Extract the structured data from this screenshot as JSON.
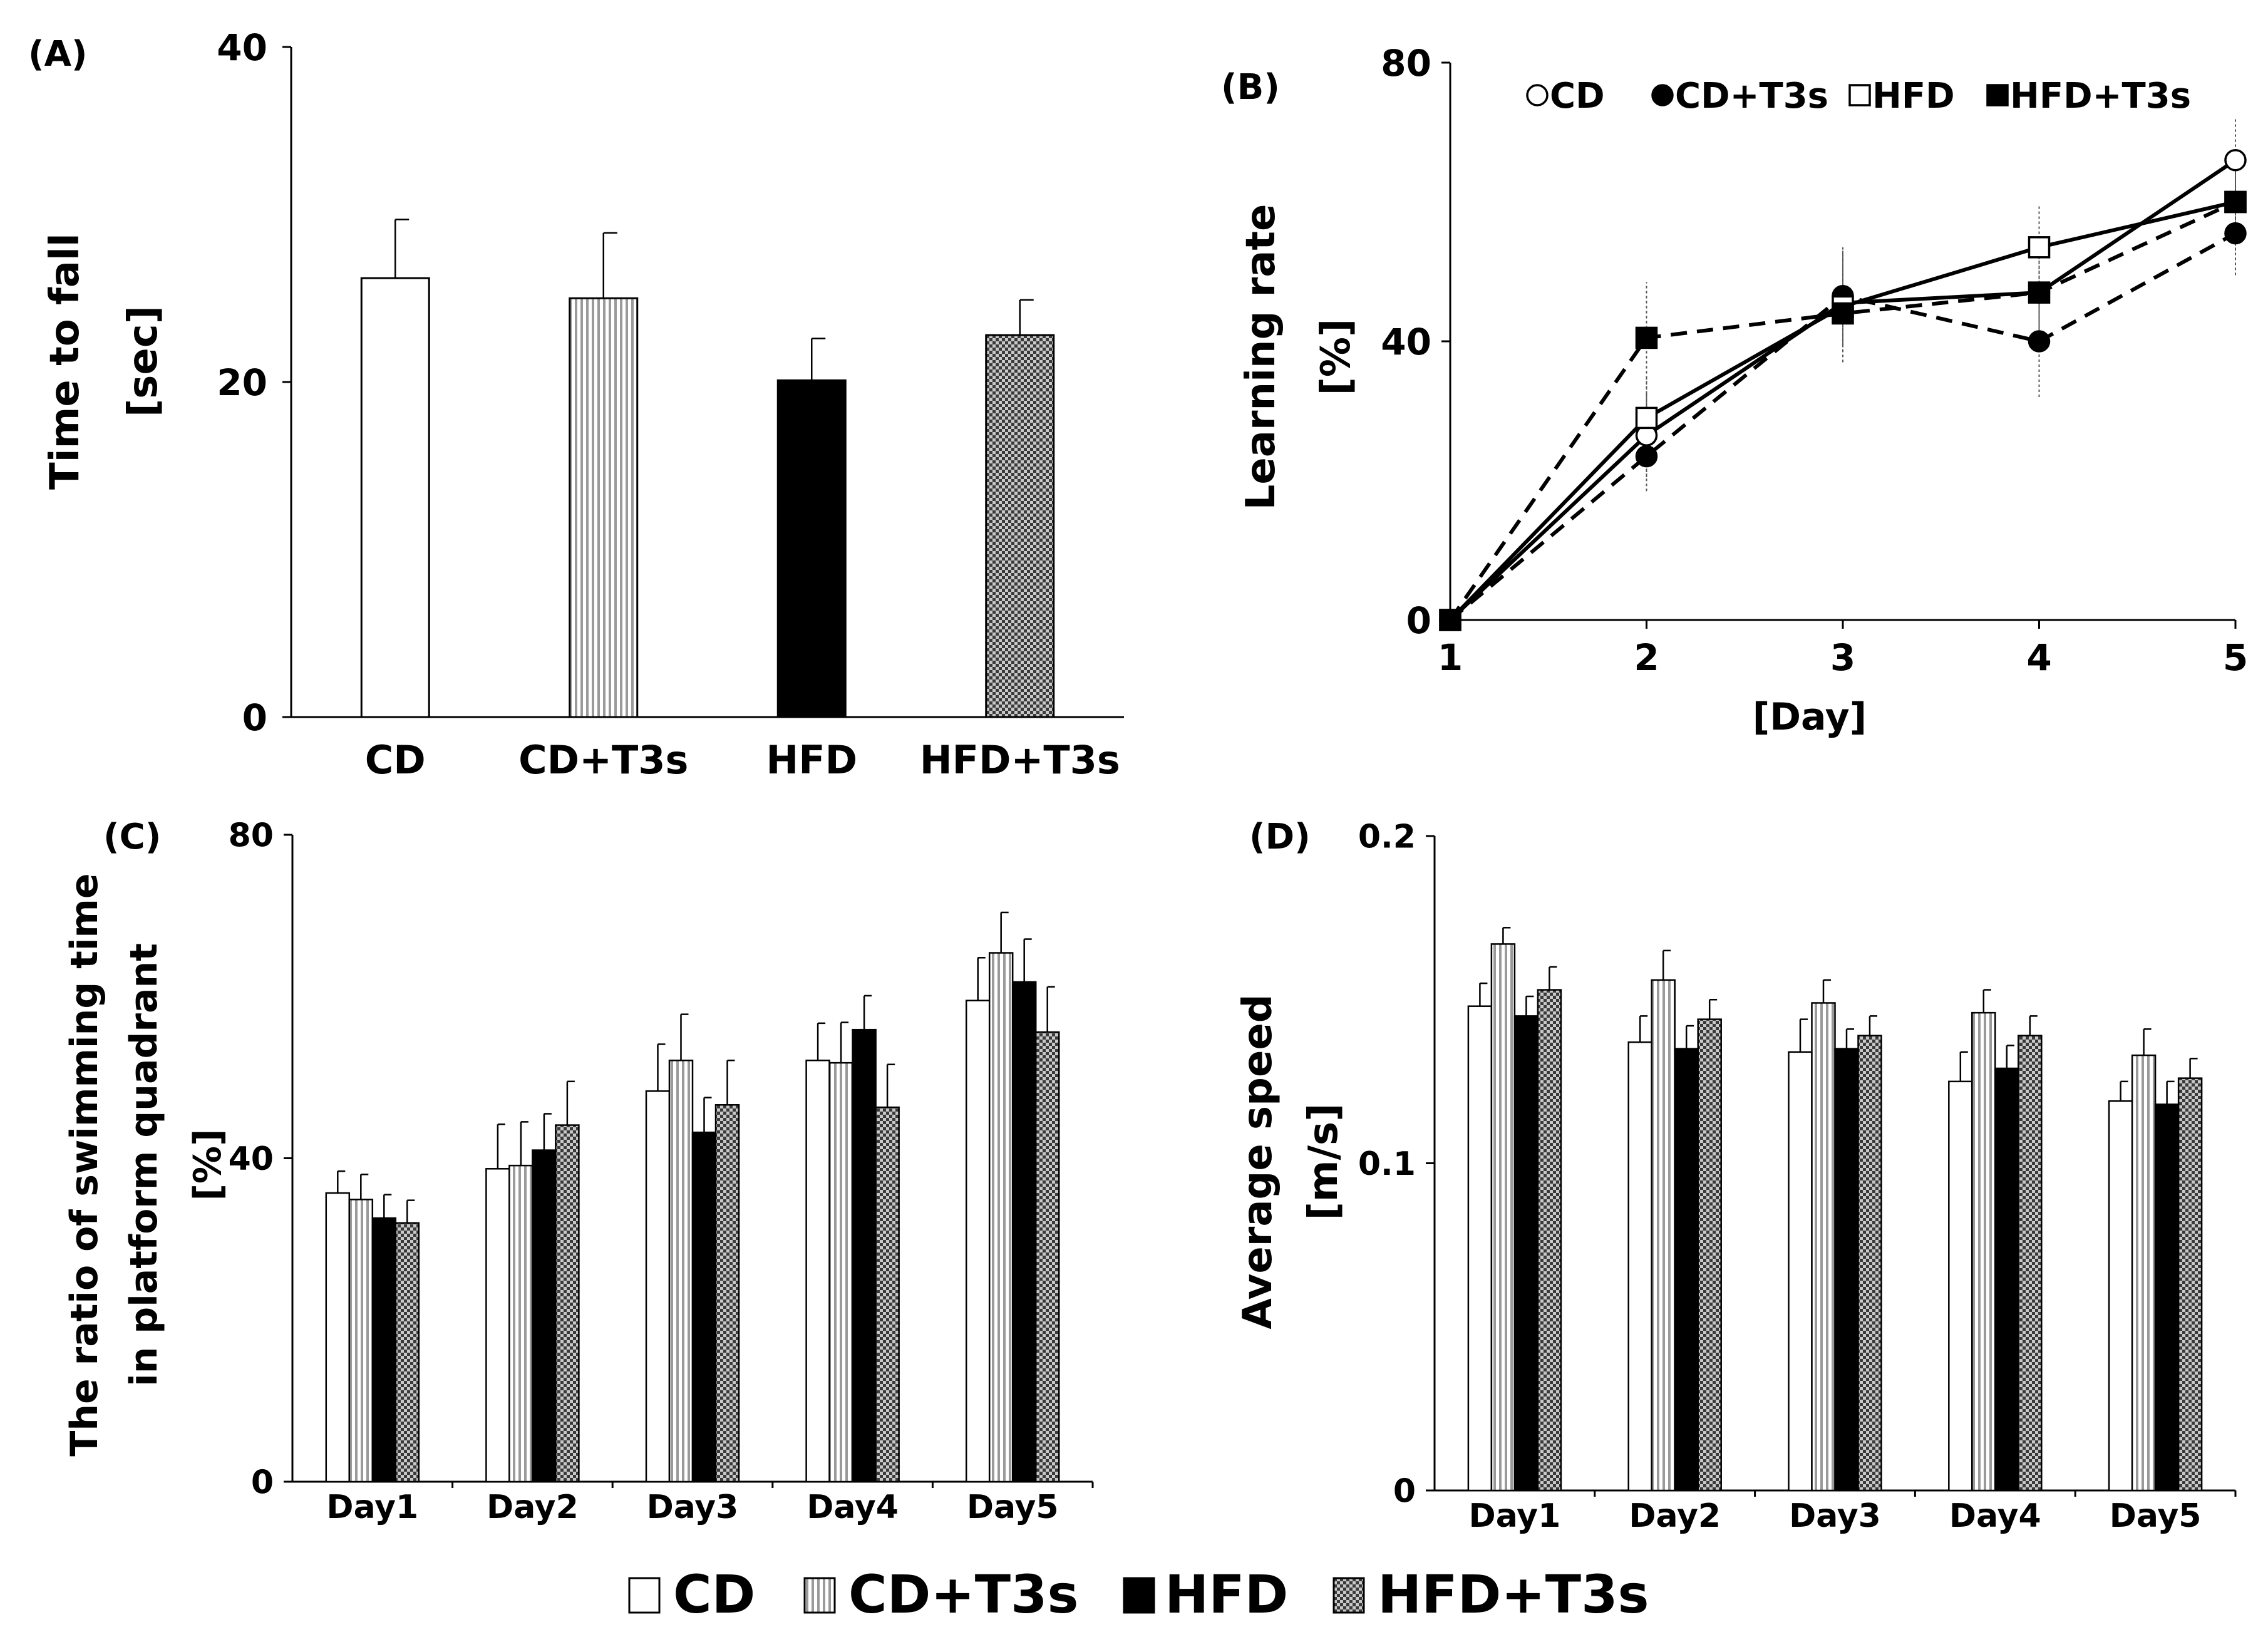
{
  "figure": {
    "legend_bottom": [
      "CD",
      "CD+T3s",
      "HFD",
      "HFD+T3s"
    ]
  },
  "colors": {
    "CD": "#ffffff",
    "CD+T3s": "vertical-stripe",
    "HFD": "#000000",
    "HFD+T3s": "checker"
  },
  "chart_data": [
    {
      "id": "A",
      "panel_label": "(A)",
      "type": "bar",
      "ylabel_lines": [
        "Time to fall",
        "[sec]"
      ],
      "xlabel": "",
      "ylim": [
        0,
        40
      ],
      "yticks": [
        0,
        20,
        40
      ],
      "categories": [
        "CD",
        "CD+T3s",
        "HFD",
        "HFD+T3s"
      ],
      "values": [
        26.2,
        25.0,
        20.1,
        22.8
      ],
      "errors": [
        3.5,
        3.9,
        2.5,
        2.1
      ]
    },
    {
      "id": "B",
      "panel_label": "(B)",
      "type": "line",
      "ylabel_lines": [
        "Learning rate",
        "[%]"
      ],
      "xlabel": "[Day]",
      "ylim": [
        0,
        80
      ],
      "yticks": [
        0,
        40,
        80
      ],
      "xlim": [
        1,
        5
      ],
      "x": [
        1,
        2,
        3,
        4,
        5
      ],
      "legend": [
        "CD",
        "CD+T3s",
        "HFD",
        "HFD+T3s"
      ],
      "series": [
        {
          "name": "CD",
          "marker": "open-circle",
          "dash": false,
          "values": [
            0,
            26.5,
            45.5,
            47,
            66
          ],
          "errors": [
            0,
            6,
            7,
            8,
            6
          ]
        },
        {
          "name": "CD+T3s",
          "marker": "filled-circle",
          "dash": true,
          "values": [
            0,
            23.5,
            46.5,
            40,
            55.5
          ],
          "errors": [
            0,
            5,
            7,
            8,
            6
          ]
        },
        {
          "name": "HFD",
          "marker": "open-square",
          "dash": false,
          "values": [
            0,
            29,
            45,
            53.5,
            60
          ],
          "errors": [
            0,
            6,
            8,
            6,
            7
          ]
        },
        {
          "name": "HFD+T3s",
          "marker": "filled-square",
          "dash": true,
          "values": [
            0,
            40.5,
            44,
            47,
            60
          ],
          "errors": [
            0,
            8,
            7,
            6,
            6
          ]
        }
      ]
    },
    {
      "id": "C",
      "panel_label": "(C)",
      "type": "bar",
      "ylabel_lines": [
        "The ratio of swimming time",
        "in platform quadrant",
        "[%]"
      ],
      "xlabel": "",
      "ylim": [
        0,
        80
      ],
      "yticks": [
        0,
        40,
        80
      ],
      "categories": [
        "Day1",
        "Day2",
        "Day3",
        "Day4",
        "Day5"
      ],
      "series": [
        {
          "name": "CD",
          "values": [
            35.7,
            38.7,
            48.3,
            52.1,
            59.5
          ],
          "errors": [
            2.7,
            5.5,
            5.8,
            4.6,
            5.3
          ]
        },
        {
          "name": "CD+T3s",
          "values": [
            34.9,
            39.1,
            52.1,
            51.8,
            65.4
          ],
          "errors": [
            3.1,
            5.4,
            5.7,
            5.0,
            5.0
          ]
        },
        {
          "name": "HFD",
          "values": [
            32.6,
            41.0,
            43.2,
            55.9,
            61.8
          ],
          "errors": [
            2.9,
            4.5,
            4.3,
            4.2,
            5.3
          ]
        },
        {
          "name": "HFD+T3s",
          "values": [
            32.0,
            44.1,
            46.6,
            46.3,
            55.6
          ],
          "errors": [
            2.8,
            5.4,
            5.5,
            5.3,
            5.6
          ]
        }
      ]
    },
    {
      "id": "D",
      "panel_label": "(D)",
      "type": "bar",
      "ylabel_lines": [
        "Average speed",
        "[m/s]"
      ],
      "xlabel": "",
      "ylim": [
        0,
        0.2
      ],
      "yticks": [
        0,
        0.1,
        0.2
      ],
      "categories": [
        "Day1",
        "Day2",
        "Day3",
        "Day4",
        "Day5"
      ],
      "series": [
        {
          "name": "CD",
          "values": [
            0.148,
            0.137,
            0.134,
            0.125,
            0.119
          ],
          "errors": [
            0.007,
            0.008,
            0.01,
            0.009,
            0.006
          ]
        },
        {
          "name": "CD+T3s",
          "values": [
            0.167,
            0.156,
            0.149,
            0.146,
            0.133
          ],
          "errors": [
            0.005,
            0.009,
            0.007,
            0.007,
            0.008
          ]
        },
        {
          "name": "HFD",
          "values": [
            0.145,
            0.135,
            0.135,
            0.129,
            0.118
          ],
          "errors": [
            0.006,
            0.007,
            0.006,
            0.007,
            0.007
          ]
        },
        {
          "name": "HFD+T3s",
          "values": [
            0.153,
            0.144,
            0.139,
            0.139,
            0.126
          ],
          "errors": [
            0.007,
            0.006,
            0.006,
            0.006,
            0.006
          ]
        }
      ]
    }
  ]
}
